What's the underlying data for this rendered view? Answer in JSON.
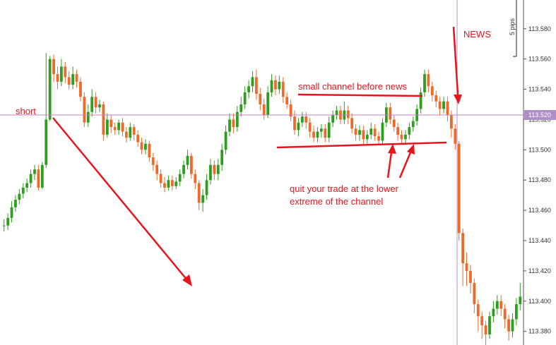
{
  "chart_data": {
    "type": "candlestick",
    "title": "",
    "xlabel": "",
    "ylabel": "",
    "ylim": [
      113.371,
      113.599
    ],
    "y_ticks": [
      "113.580",
      "113.560",
      "113.540",
      "113.520",
      "113.500",
      "113.480",
      "113.460",
      "113.440",
      "113.420",
      "113.400",
      "113.380"
    ],
    "current_price": "113.520",
    "scale_label": "5 pips",
    "grid": false,
    "colors": {
      "bull": "#2e9e1f",
      "bear": "#ee6a2a",
      "annotation": "#e8141c",
      "horizontal_line": "#c77bc7",
      "vertical_line": "#b591cf",
      "price_tag": "#b08fc8"
    },
    "candles": [
      [
        113.45,
        113.45,
        113.446,
        113.454
      ],
      [
        113.45,
        113.455,
        113.447,
        113.458
      ],
      [
        113.455,
        113.462,
        113.452,
        113.466
      ],
      [
        113.462,
        113.467,
        113.459,
        113.47
      ],
      [
        113.467,
        113.471,
        113.464,
        113.474
      ],
      [
        113.471,
        113.475,
        113.468,
        113.478
      ],
      [
        113.475,
        113.478,
        113.472,
        113.481
      ],
      [
        113.478,
        113.484,
        113.475,
        113.487
      ],
      [
        113.484,
        113.487,
        113.48,
        113.49
      ],
      [
        113.487,
        113.475,
        113.473,
        113.49
      ],
      [
        113.475,
        113.49,
        113.474,
        113.492
      ],
      [
        113.49,
        113.52,
        113.488,
        113.564
      ],
      [
        113.52,
        113.56,
        113.519,
        113.562
      ],
      [
        113.56,
        113.55,
        113.545,
        113.563
      ],
      [
        113.55,
        113.545,
        113.54,
        113.555
      ],
      [
        113.545,
        113.555,
        113.542,
        113.56
      ],
      [
        113.555,
        113.548,
        113.544,
        113.558
      ],
      [
        113.548,
        113.543,
        113.54,
        113.552
      ],
      [
        113.543,
        113.55,
        113.54,
        113.555
      ],
      [
        113.55,
        113.545,
        113.541,
        113.553
      ],
      [
        113.545,
        113.535,
        113.532,
        113.548
      ],
      [
        113.535,
        113.518,
        113.515,
        113.538
      ],
      [
        113.518,
        113.525,
        113.515,
        113.53
      ],
      [
        113.525,
        113.535,
        113.522,
        113.54
      ],
      [
        113.535,
        113.528,
        113.524,
        113.538
      ],
      [
        113.528,
        113.53,
        113.525,
        113.533
      ],
      [
        113.53,
        113.51,
        113.506,
        113.532
      ],
      [
        113.51,
        113.52,
        113.508,
        113.524
      ],
      [
        113.52,
        113.515,
        113.511,
        113.523
      ],
      [
        113.515,
        113.513,
        113.51,
        113.518
      ],
      [
        113.513,
        113.518,
        113.51,
        113.52
      ],
      [
        113.518,
        113.512,
        113.509,
        113.521
      ],
      [
        113.512,
        113.508,
        113.505,
        113.515
      ],
      [
        113.508,
        113.515,
        113.506,
        113.518
      ],
      [
        113.515,
        113.51,
        113.506,
        113.517
      ],
      [
        113.51,
        113.505,
        113.502,
        113.513
      ],
      [
        113.505,
        113.5,
        113.497,
        113.508
      ],
      [
        113.5,
        113.504,
        113.497,
        113.507
      ],
      [
        113.504,
        113.495,
        113.492,
        113.506
      ],
      [
        113.495,
        113.49,
        113.486,
        113.498
      ],
      [
        113.49,
        113.484,
        113.48,
        113.493
      ],
      [
        113.484,
        113.478,
        113.475,
        113.487
      ],
      [
        113.478,
        113.475,
        113.472,
        113.482
      ],
      [
        113.475,
        113.48,
        113.473,
        113.483
      ],
      [
        113.48,
        113.476,
        113.473,
        113.483
      ],
      [
        113.476,
        113.479,
        113.474,
        113.482
      ],
      [
        113.479,
        113.484,
        113.476,
        113.487
      ],
      [
        113.484,
        113.49,
        113.481,
        113.493
      ],
      [
        113.49,
        113.496,
        113.487,
        113.5
      ],
      [
        113.496,
        113.484,
        113.481,
        113.498
      ],
      [
        113.484,
        113.478,
        113.474,
        113.487
      ],
      [
        113.478,
        113.465,
        113.46,
        113.48
      ],
      [
        113.465,
        113.47,
        113.459,
        113.474
      ],
      [
        113.47,
        113.48,
        113.467,
        113.484
      ],
      [
        113.48,
        113.49,
        113.477,
        113.494
      ],
      [
        113.49,
        113.484,
        113.48,
        113.493
      ],
      [
        113.484,
        113.49,
        113.48,
        113.494
      ],
      [
        113.49,
        113.5,
        113.486,
        113.504
      ],
      [
        113.5,
        113.512,
        113.497,
        113.516
      ],
      [
        113.512,
        113.52,
        113.509,
        113.524
      ],
      [
        113.52,
        113.515,
        113.511,
        113.524
      ],
      [
        113.515,
        113.525,
        113.512,
        113.529
      ],
      [
        113.525,
        113.53,
        113.522,
        113.535
      ],
      [
        113.53,
        113.538,
        113.527,
        113.542
      ],
      [
        113.538,
        113.542,
        113.534,
        113.546
      ],
      [
        113.542,
        113.548,
        113.538,
        113.552
      ],
      [
        113.548,
        113.537,
        113.533,
        113.553
      ],
      [
        113.537,
        113.53,
        113.526,
        113.541
      ],
      [
        113.53,
        113.523,
        113.52,
        113.534
      ],
      [
        113.523,
        113.538,
        113.521,
        113.542
      ],
      [
        113.538,
        113.546,
        113.535,
        113.55
      ],
      [
        113.546,
        113.54,
        113.536,
        113.549
      ],
      [
        113.54,
        113.545,
        113.537,
        113.549
      ],
      [
        113.545,
        113.535,
        113.531,
        113.548
      ],
      [
        113.535,
        113.53,
        113.527,
        113.538
      ],
      [
        113.53,
        113.522,
        113.519,
        113.533
      ],
      [
        113.522,
        113.513,
        113.51,
        113.526
      ],
      [
        113.513,
        113.518,
        113.509,
        113.521
      ],
      [
        113.518,
        113.522,
        113.515,
        113.525
      ],
      [
        113.522,
        113.518,
        113.514,
        113.525
      ],
      [
        113.518,
        113.512,
        113.508,
        113.521
      ],
      [
        113.512,
        113.508,
        113.505,
        113.516
      ],
      [
        113.508,
        113.512,
        113.505,
        113.515
      ],
      [
        113.512,
        113.514,
        113.508,
        113.517
      ],
      [
        113.514,
        113.508,
        113.505,
        113.517
      ],
      [
        113.508,
        113.518,
        113.505,
        113.522
      ],
      [
        113.518,
        113.523,
        113.515,
        113.526
      ],
      [
        113.523,
        113.526,
        113.52,
        113.529
      ],
      [
        113.526,
        113.52,
        113.517,
        113.529
      ],
      [
        113.52,
        113.526,
        113.517,
        113.532
      ],
      [
        113.526,
        113.521,
        113.517,
        113.529
      ],
      [
        113.521,
        113.514,
        113.511,
        113.524
      ],
      [
        113.514,
        113.51,
        113.506,
        113.517
      ],
      [
        113.51,
        113.513,
        113.506,
        113.516
      ],
      [
        113.513,
        113.507,
        113.503,
        113.516
      ],
      [
        113.507,
        113.51,
        113.504,
        113.513
      ],
      [
        113.51,
        113.514,
        113.507,
        113.518
      ],
      [
        113.514,
        113.509,
        113.506,
        113.517
      ],
      [
        113.509,
        113.506,
        113.503,
        113.512
      ],
      [
        113.506,
        113.518,
        113.503,
        113.521
      ],
      [
        113.518,
        113.528,
        113.515,
        113.531
      ],
      [
        113.528,
        113.52,
        113.517,
        113.531
      ],
      [
        113.52,
        113.515,
        113.512,
        113.523
      ],
      [
        113.515,
        113.51,
        113.506,
        113.518
      ],
      [
        113.51,
        113.507,
        113.504,
        113.513
      ],
      [
        113.507,
        113.51,
        113.504,
        113.513
      ],
      [
        113.51,
        113.515,
        113.507,
        113.518
      ],
      [
        113.515,
        113.519,
        113.512,
        113.522
      ],
      [
        113.519,
        113.527,
        113.516,
        113.53
      ],
      [
        113.527,
        113.538,
        113.524,
        113.541
      ],
      [
        113.538,
        113.55,
        113.535,
        113.553
      ],
      [
        113.55,
        113.542,
        113.538,
        113.553
      ],
      [
        113.542,
        113.536,
        113.532,
        113.545
      ],
      [
        113.536,
        113.532,
        113.528,
        113.539
      ],
      [
        113.532,
        113.527,
        113.523,
        113.535
      ],
      [
        113.527,
        113.532,
        113.524,
        113.535
      ],
      [
        113.532,
        113.523,
        113.519,
        113.535
      ],
      [
        113.523,
        113.514,
        113.508,
        113.526
      ],
      [
        113.514,
        113.504,
        113.5,
        113.517
      ],
      [
        113.504,
        113.445,
        113.44,
        113.506
      ],
      [
        113.445,
        113.425,
        113.41,
        113.448
      ],
      [
        113.425,
        113.42,
        113.41,
        113.432
      ],
      [
        113.42,
        113.412,
        113.405,
        113.424
      ],
      [
        113.412,
        113.398,
        113.392,
        113.415
      ],
      [
        113.398,
        113.39,
        113.38,
        113.401
      ],
      [
        113.39,
        113.384,
        113.375,
        113.393
      ],
      [
        113.384,
        113.378,
        113.37,
        113.387
      ],
      [
        113.378,
        113.39,
        113.375,
        113.393
      ],
      [
        113.39,
        113.395,
        113.386,
        113.4
      ],
      [
        113.395,
        113.4,
        113.391,
        113.404
      ],
      [
        113.4,
        113.395,
        113.39,
        113.404
      ],
      [
        113.395,
        113.388,
        113.382,
        113.398
      ],
      [
        113.388,
        113.38,
        113.374,
        113.391
      ],
      [
        113.38,
        113.388,
        113.376,
        113.392
      ],
      [
        113.388,
        113.398,
        113.384,
        113.402
      ],
      [
        113.398,
        113.403,
        113.394,
        113.412
      ]
    ]
  },
  "annotations": {
    "short": "short",
    "news": "NEWS",
    "channel": "small channel before news",
    "quit_line1": "quit your trade at the lower",
    "quit_line2": "extreme of the channel"
  }
}
